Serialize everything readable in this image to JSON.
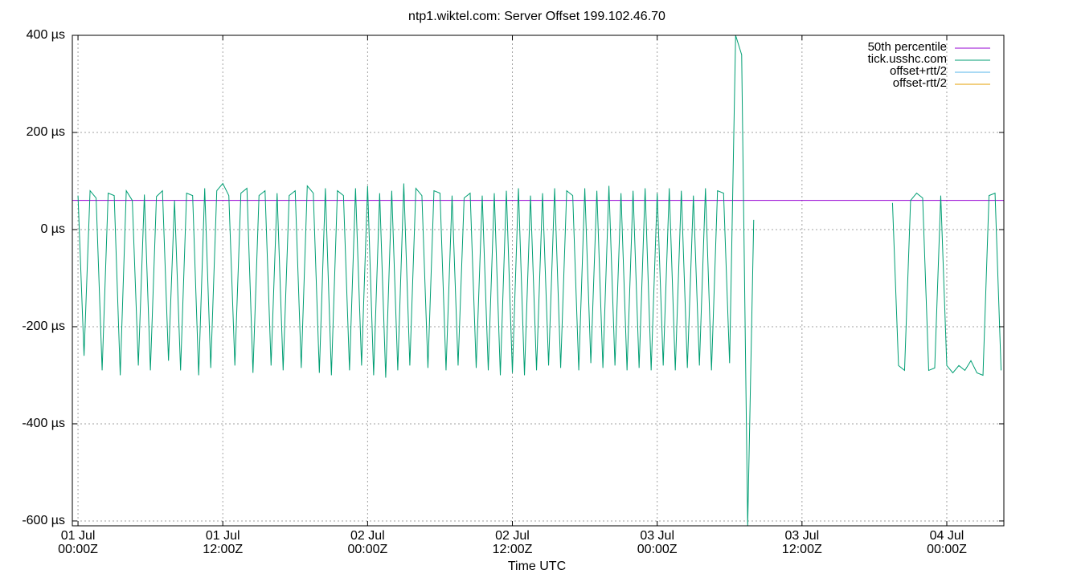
{
  "chart_data": {
    "type": "line",
    "title": "ntp1.wiktel.com: Server Offset 199.102.46.70",
    "xlabel": "Time UTC",
    "xlim": [
      -0.47,
      76.73
    ],
    "ylim": [
      -610,
      400
    ],
    "xticks": [
      {
        "value": 0,
        "label": "01 Jul\n00:00Z"
      },
      {
        "value": 12,
        "label": "01 Jul\n12:00Z"
      },
      {
        "value": 24,
        "label": "02 Jul\n00:00Z"
      },
      {
        "value": 36,
        "label": "02 Jul\n12:00Z"
      },
      {
        "value": 48,
        "label": "03 Jul\n00:00Z"
      },
      {
        "value": 60,
        "label": "03 Jul\n12:00Z"
      },
      {
        "value": 72,
        "label": "04 Jul\n00:00Z"
      }
    ],
    "yticks": [
      {
        "value": 400,
        "label": "400 µs"
      },
      {
        "value": 200,
        "label": "200 µs"
      },
      {
        "value": 0,
        "label": "0 µs"
      },
      {
        "value": -200,
        "label": "-200 µs"
      },
      {
        "value": -400,
        "label": "-400 µs"
      },
      {
        "value": -600,
        "label": "-600 µs"
      }
    ],
    "grid": true,
    "legend": "top-right",
    "series": [
      {
        "name": "50th percentile",
        "color": "#9400d3",
        "x": [
          -0.47,
          76.73
        ],
        "values": [
          60,
          60
        ]
      },
      {
        "name": "tick.usshc.com",
        "color": "#009e73",
        "x": [
          0,
          0.5,
          1,
          1.5,
          2,
          2.5,
          3,
          3.5,
          4,
          4.5,
          5,
          5.5,
          6,
          6.5,
          7,
          7.5,
          8,
          8.5,
          9,
          9.5,
          10,
          10.5,
          11,
          11.5,
          12,
          12.5,
          13,
          13.5,
          14,
          14.5,
          15,
          15.5,
          16,
          16.5,
          17,
          17.5,
          18,
          18.5,
          19,
          19.5,
          20,
          20.5,
          21,
          21.5,
          22,
          22.5,
          23,
          23.5,
          24,
          24.5,
          25,
          25.5,
          26,
          26.5,
          27,
          27.5,
          28,
          28.5,
          29,
          29.5,
          30,
          30.5,
          31,
          31.5,
          32,
          32.5,
          33,
          33.5,
          34,
          34.5,
          35,
          35.5,
          36,
          36.5,
          37,
          37.5,
          38,
          38.5,
          39,
          39.5,
          40,
          40.5,
          41,
          41.5,
          42,
          42.5,
          43,
          43.5,
          44,
          44.5,
          45,
          45.5,
          46,
          46.5,
          47,
          47.5,
          48,
          48.5,
          49,
          49.5,
          50,
          50.5,
          51,
          51.5,
          52,
          52.5,
          53,
          53.5,
          54,
          54.5,
          55,
          55.5,
          56,
          60,
          67.5,
          68,
          68.5,
          69,
          69.5,
          70,
          70.5,
          71,
          71.5,
          72,
          72.5,
          73,
          73.5,
          74,
          74.5,
          75,
          75.5,
          76,
          76.5
        ],
        "values": [
          70,
          -260,
          80,
          65,
          -290,
          75,
          70,
          -300,
          80,
          60,
          -280,
          72,
          -290,
          68,
          80,
          -270,
          60,
          -290,
          75,
          70,
          -300,
          85,
          -285,
          80,
          95,
          70,
          -280,
          75,
          85,
          -295,
          70,
          80,
          -280,
          75,
          -290,
          70,
          80,
          -285,
          90,
          75,
          -295,
          85,
          -300,
          80,
          70,
          -290,
          85,
          -280,
          90,
          -300,
          75,
          -305,
          80,
          -290,
          95,
          -280,
          85,
          70,
          -285,
          80,
          75,
          -290,
          70,
          -280,
          65,
          75,
          -285,
          70,
          -290,
          75,
          -300,
          80,
          -295,
          85,
          -300,
          70,
          -290,
          75,
          -280,
          85,
          -285,
          80,
          70,
          -290,
          85,
          -275,
          80,
          -285,
          90,
          -280,
          75,
          -290,
          80,
          -285,
          85,
          -290,
          75,
          -280,
          85,
          -290,
          80,
          -285,
          70,
          -280,
          85,
          -290,
          80,
          75,
          -275,
          400,
          360,
          -610,
          20,
          null,
          55,
          -280,
          -290,
          60,
          75,
          65,
          -290,
          -285,
          70,
          -280,
          -295,
          -280,
          -290,
          -270,
          -295,
          -300,
          70,
          75,
          -290
        ]
      },
      {
        "name": "offset+rtt/2",
        "color": "#56b4e9",
        "x": [],
        "values": []
      },
      {
        "name": "offset-rtt/2",
        "color": "#e69f00",
        "x": [],
        "values": []
      }
    ]
  }
}
